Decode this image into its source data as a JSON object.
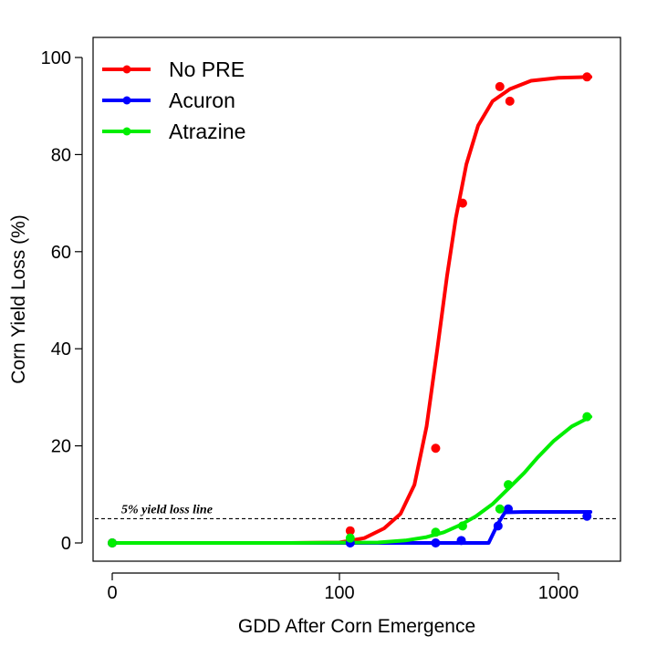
{
  "chart_data": {
    "type": "scatter",
    "xlabel": "GDD After Corn Emergence",
    "ylabel": "Corn Yield Loss (%)",
    "x_scale": "log",
    "x_ticks": [
      0,
      100,
      1000
    ],
    "x_tick_labels": [
      "0",
      "100",
      "1000"
    ],
    "y_ticks": [
      0,
      20,
      40,
      60,
      80,
      100
    ],
    "y_tick_labels": [
      "0",
      "20",
      "40",
      "60",
      "80",
      "100"
    ],
    "ylim": [
      0,
      100
    ],
    "legend_position": "top-left",
    "grid": false,
    "reference_line": {
      "y": 5,
      "label": "5% yield loss line"
    },
    "series": [
      {
        "name": "No PRE",
        "color": "#ff0000",
        "points": [
          [
            0,
            0
          ],
          [
            112,
            2.5
          ],
          [
            275,
            19.5
          ],
          [
            365,
            70
          ],
          [
            540,
            94
          ],
          [
            600,
            91
          ],
          [
            1350,
            96
          ]
        ],
        "fit": [
          [
            0,
            0
          ],
          [
            60,
            0
          ],
          [
            100,
            0.1
          ],
          [
            130,
            1
          ],
          [
            160,
            3
          ],
          [
            190,
            6
          ],
          [
            220,
            12
          ],
          [
            250,
            24
          ],
          [
            280,
            40
          ],
          [
            310,
            55
          ],
          [
            340,
            67
          ],
          [
            380,
            78
          ],
          [
            430,
            86
          ],
          [
            500,
            91
          ],
          [
            600,
            93.5
          ],
          [
            750,
            95.2
          ],
          [
            1000,
            95.8
          ],
          [
            1400,
            96
          ]
        ]
      },
      {
        "name": "Acuron",
        "color": "#0000ff",
        "points": [
          [
            0,
            0
          ],
          [
            112,
            0
          ],
          [
            275,
            0
          ],
          [
            360,
            0.5
          ],
          [
            530,
            3.5
          ],
          [
            590,
            7
          ],
          [
            1350,
            5.5
          ]
        ],
        "fit": [
          [
            0,
            0
          ],
          [
            60,
            0
          ],
          [
            480,
            0
          ],
          [
            530,
            4
          ],
          [
            570,
            6.3
          ],
          [
            700,
            6.4
          ],
          [
            1000,
            6.4
          ],
          [
            1400,
            6.4
          ]
        ]
      },
      {
        "name": "Atrazine",
        "color": "#00ee00",
        "points": [
          [
            0,
            0
          ],
          [
            112,
            1
          ],
          [
            275,
            2.2
          ],
          [
            365,
            3.5
          ],
          [
            540,
            7
          ],
          [
            590,
            12
          ],
          [
            1350,
            26
          ]
        ],
        "fit": [
          [
            0,
            0
          ],
          [
            60,
            0
          ],
          [
            150,
            0.1
          ],
          [
            200,
            0.5
          ],
          [
            250,
            1.2
          ],
          [
            300,
            2.2
          ],
          [
            360,
            3.8
          ],
          [
            420,
            5.5
          ],
          [
            500,
            8
          ],
          [
            600,
            11.5
          ],
          [
            700,
            14.5
          ],
          [
            800,
            17.5
          ],
          [
            950,
            21
          ],
          [
            1150,
            24
          ],
          [
            1400,
            26
          ]
        ]
      }
    ]
  }
}
